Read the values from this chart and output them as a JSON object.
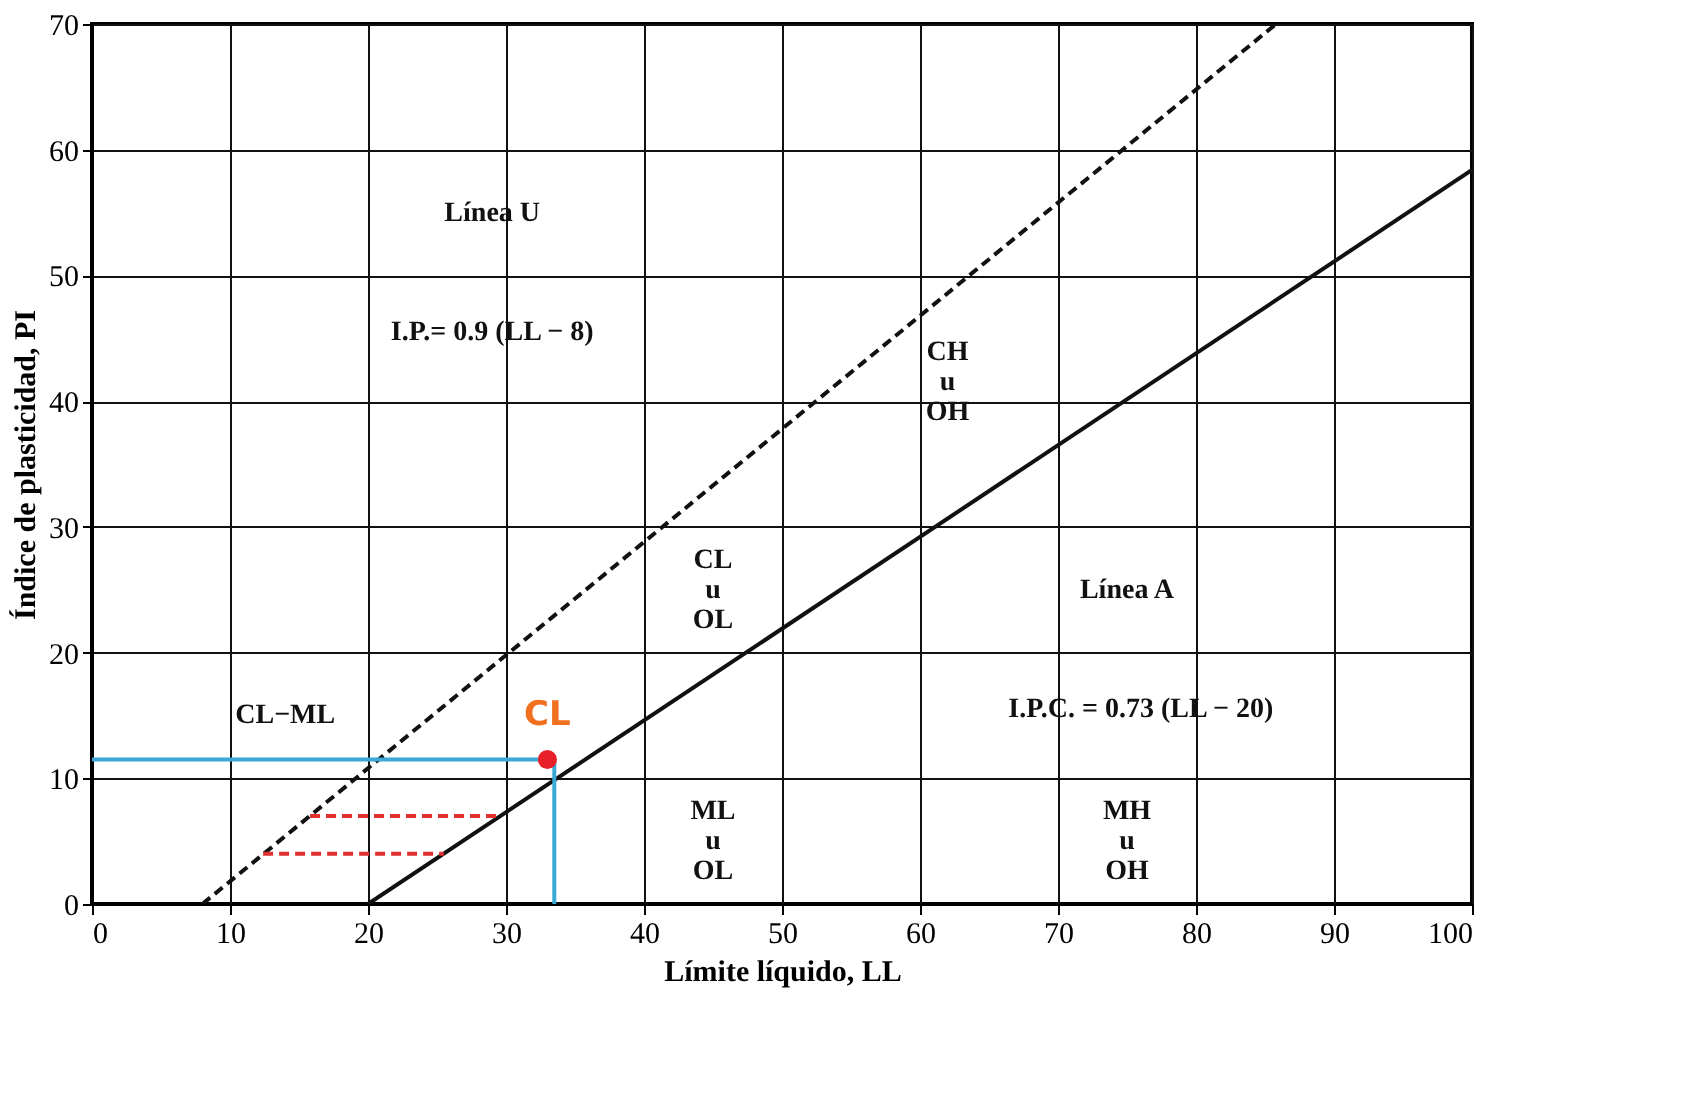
{
  "chart_data": {
    "type": "line",
    "xlabel": "Límite líquido, LL",
    "ylabel": "Índice de plasticidad, PI",
    "xlim": [
      0,
      100
    ],
    "ylim": [
      0,
      70
    ],
    "xticks": [
      0,
      10,
      20,
      30,
      40,
      50,
      60,
      70,
      80,
      90,
      100
    ],
    "yticks": [
      0,
      10,
      20,
      30,
      40,
      50,
      60,
      70
    ],
    "grid": true,
    "series": [
      {
        "color": "#111111",
        "line_style": "solid",
        "x": [
          20,
          100
        ],
        "values": [
          0,
          58.4
        ]
      },
      {
        "color": "#111111",
        "line_style": "dashed",
        "x": [
          8,
          85.8
        ],
        "values": [
          0,
          70
        ]
      },
      {
        "color": "#e03030",
        "line_style": "dashed",
        "x": [
          12.4,
          25.5
        ],
        "values": [
          4,
          4
        ]
      },
      {
        "color": "#e03030",
        "line_style": "dashed",
        "x": [
          15.8,
          29.6
        ],
        "values": [
          7,
          7
        ]
      },
      {
        "color": "#3aa8d8",
        "line_style": "solid",
        "x": [
          0,
          33.5,
          33.5
        ],
        "values": [
          11.5,
          11.5,
          0
        ]
      },
      {
        "type": "scatter",
        "name": "CL",
        "color": "#e8202a",
        "marker": "circle",
        "x": [
          33
        ],
        "values": [
          11.5
        ]
      }
    ],
    "annotations": [
      "Línea U",
      "I.P.= 0.9 (LL − 8)",
      "Línea A",
      "I.P.C. = 0.73 (LL − 20)",
      "CL−ML",
      "CL\nu\nOL",
      "ML\nu\nOL",
      "CH\nu\nOH",
      "MH\nu\nOH"
    ]
  }
}
